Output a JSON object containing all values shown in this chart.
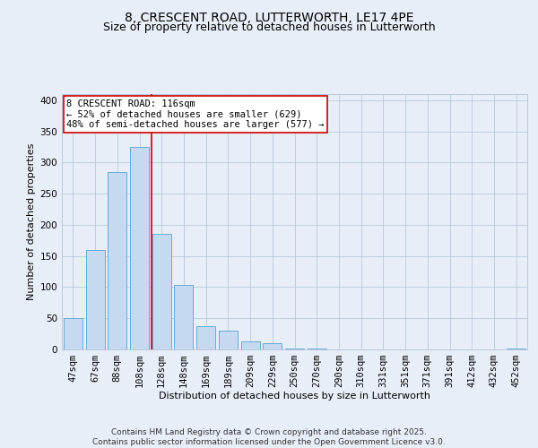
{
  "title_line1": "8, CRESCENT ROAD, LUTTERWORTH, LE17 4PE",
  "title_line2": "Size of property relative to detached houses in Lutterworth",
  "xlabel": "Distribution of detached houses by size in Lutterworth",
  "ylabel": "Number of detached properties",
  "categories": [
    "47sqm",
    "67sqm",
    "88sqm",
    "108sqm",
    "128sqm",
    "148sqm",
    "169sqm",
    "189sqm",
    "209sqm",
    "229sqm",
    "250sqm",
    "270sqm",
    "290sqm",
    "310sqm",
    "331sqm",
    "351sqm",
    "371sqm",
    "391sqm",
    "412sqm",
    "432sqm",
    "452sqm"
  ],
  "bar_values": [
    50,
    160,
    285,
    325,
    185,
    103,
    38,
    30,
    13,
    10,
    2,
    1,
    0,
    0,
    0,
    0,
    0,
    0,
    0,
    0,
    1
  ],
  "bar_color": "#c5d9f0",
  "bar_edge_color": "#6aaad4",
  "vline_x": 3.55,
  "vline_color": "#cc0000",
  "annotation_text": "8 CRESCENT ROAD: 116sqm\n← 52% of detached houses are smaller (629)\n48% of semi-detached houses are larger (577) →",
  "annotation_box_facecolor": "#ffffff",
  "annotation_box_edgecolor": "#cc0000",
  "ylim": [
    0,
    410
  ],
  "yticks": [
    0,
    50,
    100,
    150,
    200,
    250,
    300,
    350,
    400
  ],
  "footer": "Contains HM Land Registry data © Crown copyright and database right 2025.\nContains public sector information licensed under the Open Government Licence v3.0.",
  "bg_color": "#e8eef7",
  "plot_bg_color": "#e8eef7",
  "grid_color": "#b8c8dc",
  "title_fontsize": 10,
  "subtitle_fontsize": 9,
  "axis_label_fontsize": 8,
  "tick_fontsize": 7.5,
  "annotation_fontsize": 7.5,
  "footer_fontsize": 6.5
}
